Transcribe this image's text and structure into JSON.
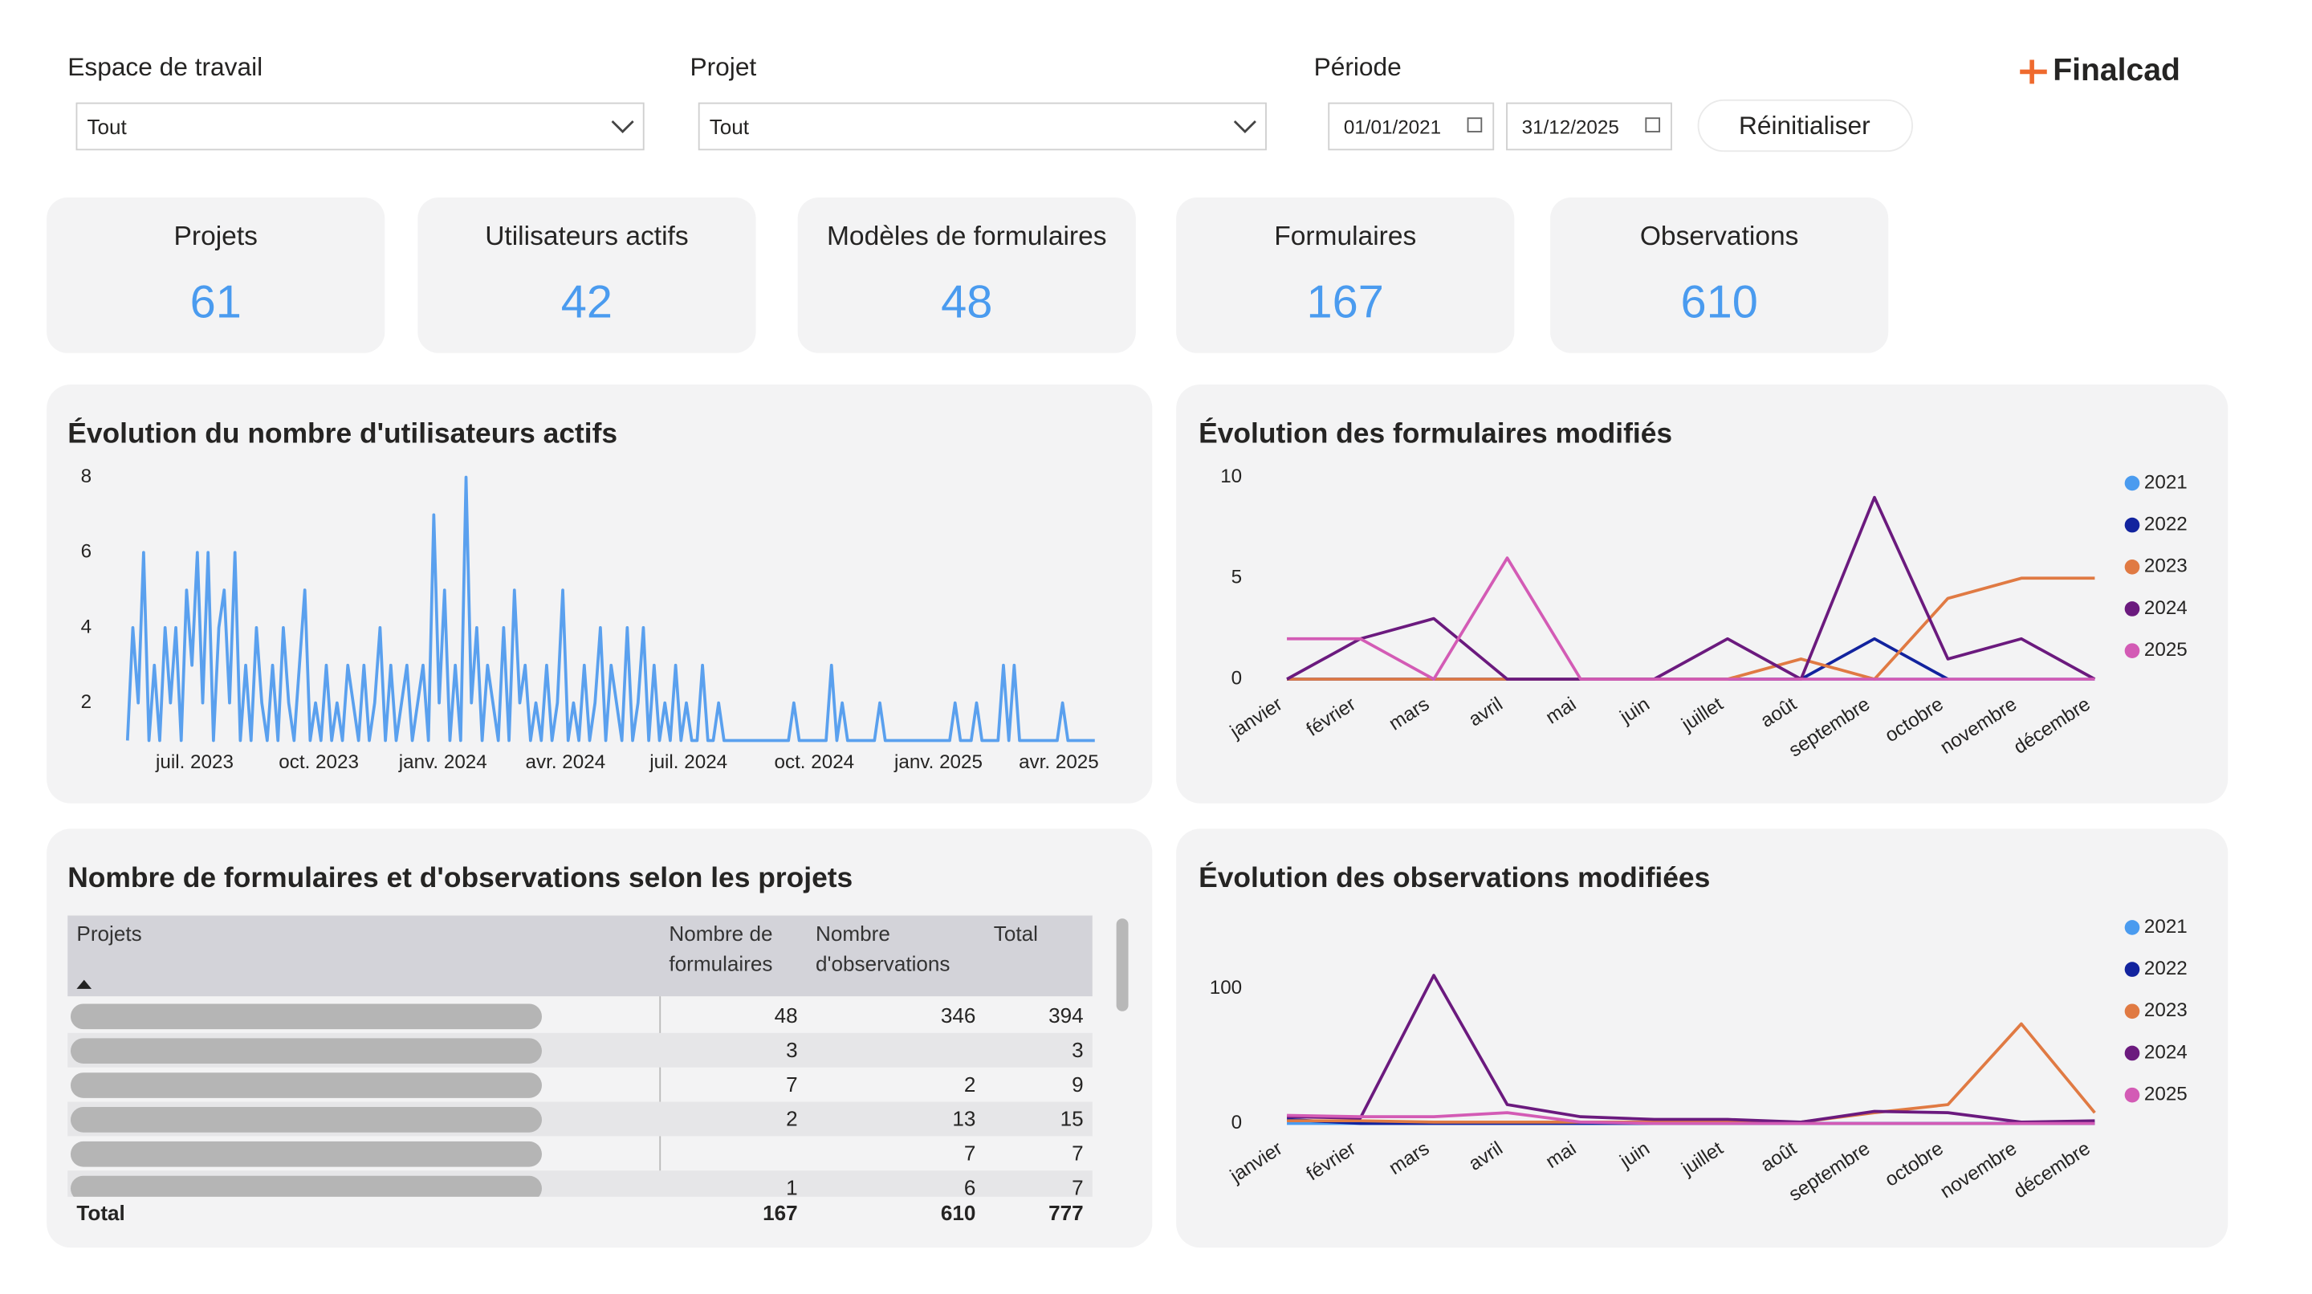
{
  "logo": "Finalcad",
  "filters": [
    {
      "label": "Espace de travail",
      "value": "Tout"
    },
    {
      "label": "Projet",
      "value": "Tout"
    },
    {
      "label": "Période",
      "start": "01/01/2021",
      "end": "31/12/2025"
    }
  ],
  "reset_button": "Réinitialiser",
  "kpis": [
    {
      "label": "Projets",
      "value": 61
    },
    {
      "label": "Utilisateurs actifs",
      "value": 42
    },
    {
      "label": "Modèles de formulaires",
      "value": 48
    },
    {
      "label": "Formulaires",
      "value": 167
    },
    {
      "label": "Observations",
      "value": 610
    }
  ],
  "table": {
    "title": "Nombre de formulaires et d'observations selon les projets",
    "columns": [
      "Projets",
      "Nombre de formulaires",
      "Nombre d'observations",
      "Total"
    ],
    "rows": [
      [
        48,
        346,
        394
      ],
      [
        3,
        null,
        3
      ],
      [
        7,
        2,
        9
      ],
      [
        2,
        13,
        15
      ],
      [
        null,
        7,
        7
      ],
      [
        1,
        6,
        7
      ]
    ],
    "total": {
      "label": "Total",
      "values": [
        167,
        610,
        777
      ]
    }
  },
  "chart_data": [
    {
      "type": "line",
      "title": "Évolution du nombre d'utilisateurs actifs",
      "color": "#5aa0ee",
      "values": [
        1,
        4,
        2,
        6,
        1,
        3,
        1,
        4,
        2,
        4,
        1,
        5,
        3,
        6,
        2,
        6,
        1,
        4,
        5,
        2,
        6,
        1,
        3,
        1,
        4,
        2,
        1,
        3,
        1,
        4,
        2,
        1,
        3,
        5,
        1,
        2,
        1,
        3,
        1,
        2,
        1,
        3,
        2,
        1,
        3,
        1,
        2,
        4,
        1,
        3,
        1,
        2,
        3,
        1,
        2,
        3,
        1,
        7,
        2,
        5,
        1,
        3,
        1,
        8,
        2,
        4,
        1,
        3,
        2,
        1,
        4,
        1,
        5,
        2,
        3,
        1,
        2,
        1,
        3,
        1,
        2,
        5,
        1,
        2,
        1,
        3,
        1,
        2,
        4,
        1,
        3,
        2,
        1,
        4,
        1,
        2,
        4,
        1,
        3,
        1,
        2,
        1,
        3,
        1,
        2,
        1,
        1,
        3,
        1,
        1,
        2,
        1,
        1,
        1,
        1,
        1,
        1,
        1,
        1,
        1,
        1,
        1,
        1,
        1,
        2,
        1,
        1,
        1,
        1,
        1,
        1,
        3,
        1,
        2,
        1,
        1,
        1,
        1,
        1,
        1,
        2,
        1,
        1,
        1,
        1,
        1,
        1,
        1,
        1,
        1,
        1,
        1,
        1,
        1,
        2,
        1,
        1,
        1,
        2,
        1,
        1,
        1,
        1,
        3,
        1,
        3,
        1,
        1,
        1,
        1,
        1,
        1,
        1,
        1,
        2,
        1,
        1,
        1,
        1,
        1,
        1
      ],
      "xlim": [
        0,
        179
      ],
      "xticks": [
        {
          "value": 12.5,
          "label": "juil. 2023"
        },
        {
          "value": 35.6,
          "label": "oct. 2023"
        },
        {
          "value": 58.7,
          "label": "janv. 2024"
        },
        {
          "value": 81.5,
          "label": "avr. 2024"
        },
        {
          "value": 104.4,
          "label": "juil. 2024"
        },
        {
          "value": 127.8,
          "label": "oct. 2024"
        },
        {
          "value": 150.9,
          "label": "janv. 2025"
        },
        {
          "value": 173.3,
          "label": "avr. 2025"
        }
      ],
      "ylim": [
        1,
        8
      ],
      "yticks": [
        2,
        4,
        6,
        8
      ]
    },
    {
      "type": "multiline",
      "title": "Évolution des formulaires modifiés",
      "categories": [
        "janvier",
        "février",
        "mars",
        "avril",
        "mai",
        "juin",
        "juillet",
        "août",
        "septembre",
        "octobre",
        "novembre",
        "décembre"
      ],
      "ylim": [
        0,
        10
      ],
      "yticks": [
        0,
        5,
        10
      ],
      "series": [
        {
          "name": "2021",
          "color": "#4a9bef",
          "values": [
            0,
            0,
            0,
            0,
            0,
            0,
            0,
            0,
            0,
            0,
            0,
            0
          ]
        },
        {
          "name": "2022",
          "color": "#12239e",
          "values": [
            0,
            0,
            0,
            0,
            0,
            0,
            0,
            0,
            2,
            0,
            null,
            null
          ]
        },
        {
          "name": "2023",
          "color": "#e07a43",
          "values": [
            0,
            0,
            0,
            0,
            0,
            0,
            0,
            1,
            0,
            4,
            5,
            5
          ]
        },
        {
          "name": "2024",
          "color": "#6b1a7e",
          "values": [
            0,
            2,
            3,
            0,
            0,
            0,
            2,
            0,
            9,
            1,
            2,
            0
          ]
        },
        {
          "name": "2025",
          "color": "#d35bb5",
          "values": [
            2,
            2,
            0,
            6,
            0,
            0,
            0,
            0,
            0,
            0,
            0,
            0
          ]
        }
      ]
    },
    {
      "type": "multiline",
      "title": "Évolution des observations modifiées",
      "categories": [
        "janvier",
        "février",
        "mars",
        "avril",
        "mai",
        "juin",
        "juillet",
        "août",
        "septembre",
        "octobre",
        "novembre",
        "décembre"
      ],
      "ylim": [
        0,
        120
      ],
      "yticks": [
        0,
        100
      ],
      "series": [
        {
          "name": "2021",
          "color": "#4a9bef",
          "values": [
            0,
            0,
            0,
            0,
            0,
            0,
            0,
            0,
            0,
            0,
            0,
            0
          ]
        },
        {
          "name": "2022",
          "color": "#12239e",
          "values": [
            3,
            0,
            0,
            0,
            0,
            0,
            0,
            0,
            0,
            0,
            0,
            0
          ]
        },
        {
          "name": "2023",
          "color": "#e07a43",
          "values": [
            2,
            2,
            1,
            1,
            1,
            1,
            1,
            1,
            8,
            14,
            74,
            8
          ]
        },
        {
          "name": "2024",
          "color": "#6b1a7e",
          "values": [
            5,
            4,
            110,
            14,
            5,
            3,
            3,
            1,
            9,
            8,
            1,
            2
          ]
        },
        {
          "name": "2025",
          "color": "#d35bb5",
          "values": [
            6,
            5,
            5,
            8,
            1,
            0,
            0,
            0,
            0,
            0,
            0,
            0
          ]
        }
      ]
    }
  ]
}
